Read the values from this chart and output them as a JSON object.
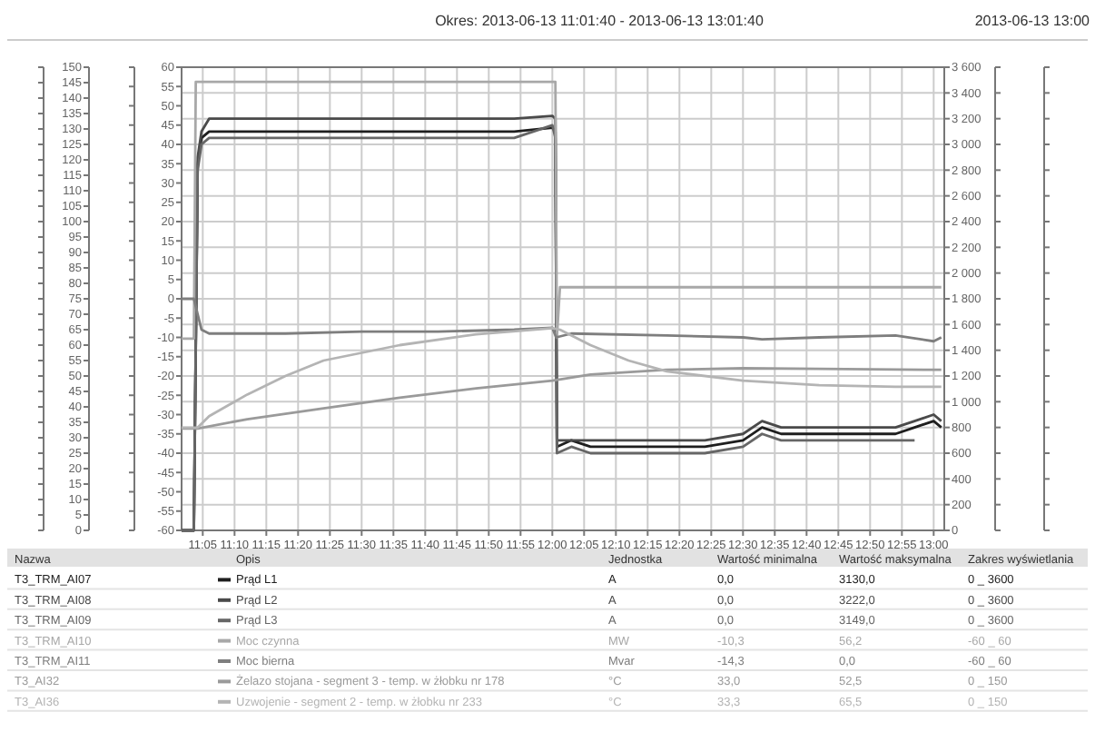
{
  "chart_data": {
    "type": "line",
    "title": "Okres: 2013-06-13 11:01:40 - 2013-06-13 13:01:40",
    "subtitle": "2013-06-13 13:00",
    "xlim": [
      11.0278,
      13.0278
    ],
    "xticks": [
      {
        "value": 11.0833,
        "label": "11:05"
      },
      {
        "value": 11.1667,
        "label": "11:10"
      },
      {
        "value": 11.25,
        "label": "11:15"
      },
      {
        "value": 11.3333,
        "label": "11:20"
      },
      {
        "value": 11.4167,
        "label": "11:25"
      },
      {
        "value": 11.5,
        "label": "11:30"
      },
      {
        "value": 11.5833,
        "label": "11:35"
      },
      {
        "value": 11.6667,
        "label": "11:40"
      },
      {
        "value": 11.75,
        "label": "11:45"
      },
      {
        "value": 11.8333,
        "label": "11:50"
      },
      {
        "value": 11.9167,
        "label": "11:55"
      },
      {
        "value": 12,
        "label": "12:00"
      },
      {
        "value": 12.0833,
        "label": "12:05"
      },
      {
        "value": 12.1667,
        "label": "12:10"
      },
      {
        "value": 12.25,
        "label": "12:15"
      },
      {
        "value": 12.3333,
        "label": "12:20"
      },
      {
        "value": 12.4167,
        "label": "12:25"
      },
      {
        "value": 12.5,
        "label": "12:30"
      },
      {
        "value": 12.5833,
        "label": "12:35"
      },
      {
        "value": 12.6667,
        "label": "12:40"
      },
      {
        "value": 12.75,
        "label": "12:45"
      },
      {
        "value": 12.8333,
        "label": "12:50"
      },
      {
        "value": 12.9167,
        "label": "12:55"
      },
      {
        "value": 13,
        "label": "13:00"
      }
    ],
    "ylim": [
      -60,
      60
    ],
    "yticks": [
      -60,
      -55,
      -50,
      -45,
      -40,
      -35,
      -30,
      -25,
      -20,
      -15,
      -10,
      -5,
      0,
      5,
      10,
      15,
      20,
      25,
      30,
      35,
      40,
      45,
      50,
      55,
      60
    ],
    "y2lim": [
      0,
      3600
    ],
    "y2ticks": [
      0,
      200,
      400,
      600,
      800,
      {
        "value": 1000,
        "label": "1 000"
      },
      {
        "value": 1200,
        "label": "1 200"
      },
      {
        "value": 1400,
        "label": "1 400"
      },
      {
        "value": 1600,
        "label": "1 600"
      },
      {
        "value": 1800,
        "label": "1 800"
      },
      {
        "value": 2000,
        "label": "2 000"
      },
      {
        "value": 2200,
        "label": "2 200"
      },
      {
        "value": 2400,
        "label": "2 400"
      },
      {
        "value": 2600,
        "label": "2 600"
      },
      {
        "value": 2800,
        "label": "2 800"
      },
      {
        "value": 3000,
        "label": "3 000"
      },
      {
        "value": 3200,
        "label": "3 200"
      },
      {
        "value": 3400,
        "label": "3 400"
      },
      {
        "value": 3600,
        "label": "3 600"
      }
    ],
    "y3lim": [
      0,
      150
    ],
    "y3ticks": [
      0,
      5,
      10,
      15,
      20,
      25,
      30,
      35,
      40,
      45,
      50,
      55,
      60,
      65,
      70,
      75,
      80,
      85,
      90,
      95,
      100,
      105,
      110,
      115,
      120,
      125,
      130,
      135,
      140,
      145,
      150
    ],
    "grid": true,
    "legend": "bottom",
    "line_style": "solid",
    "series": [
      {
        "name": "Prąd L1",
        "color": "#1e1e1e",
        "axis": "y2",
        "x": [
          11.0278,
          11.06,
          11.07,
          11.08,
          11.1,
          11.2,
          11.3,
          11.4,
          11.5,
          11.6,
          11.7,
          11.8,
          11.9,
          12.0,
          12.008,
          12.012,
          12.05,
          12.1,
          12.2,
          12.3,
          12.4,
          12.5,
          12.55,
          12.6,
          12.7,
          12.8,
          12.9,
          12.95,
          13.0,
          13.02
        ],
        "values": [
          0,
          0,
          2850,
          3050,
          3100,
          3100,
          3100,
          3100,
          3100,
          3100,
          3100,
          3100,
          3100,
          3130,
          3100,
          650,
          700,
          650,
          650,
          650,
          650,
          700,
          800,
          750,
          750,
          750,
          750,
          800,
          850,
          800
        ]
      },
      {
        "name": "Prąd L2",
        "color": "#4a4a4a",
        "axis": "y2",
        "x": [
          11.0278,
          11.06,
          11.07,
          11.08,
          11.1,
          11.2,
          11.3,
          11.4,
          11.5,
          11.6,
          11.7,
          11.8,
          11.9,
          12.0,
          12.008,
          12.012,
          12.05,
          12.1,
          12.2,
          12.3,
          12.4,
          12.5,
          12.55,
          12.6,
          12.7,
          12.8,
          12.9,
          12.95,
          13.0,
          13.02
        ],
        "values": [
          0,
          0,
          2900,
          3100,
          3200,
          3200,
          3200,
          3200,
          3200,
          3200,
          3200,
          3200,
          3200,
          3222,
          3200,
          700,
          700,
          700,
          700,
          700,
          700,
          750,
          850,
          800,
          800,
          800,
          800,
          850,
          900,
          850
        ]
      },
      {
        "name": "Prąd L3",
        "color": "#666666",
        "axis": "y2",
        "x": [
          11.0278,
          11.06,
          11.07,
          11.08,
          11.1,
          11.2,
          11.3,
          11.4,
          11.5,
          11.6,
          11.7,
          11.8,
          11.9,
          12.0,
          12.008,
          12.012,
          12.05,
          12.1,
          12.2,
          12.3,
          12.4,
          12.5,
          12.55,
          12.6,
          12.7,
          12.8,
          12.9,
          12.95
        ],
        "values": [
          0,
          0,
          2800,
          3000,
          3050,
          3050,
          3050,
          3050,
          3050,
          3050,
          3050,
          3050,
          3050,
          3149,
          3050,
          600,
          650,
          600,
          600,
          600,
          600,
          650,
          750,
          700,
          700,
          700,
          700,
          700
        ]
      },
      {
        "name": "Moc czynna",
        "color": "#a8a8a8",
        "x": [
          11.0278,
          11.06,
          11.065,
          12.008,
          12.012,
          12.02,
          13.02
        ],
        "values": [
          -10.3,
          -10.3,
          56.2,
          56.2,
          -10,
          3,
          3
        ]
      },
      {
        "name": "Moc bierna",
        "color": "#7e7e7e",
        "x": [
          11.0278,
          11.06,
          11.065,
          11.08,
          11.1,
          11.3,
          11.5,
          11.7,
          11.9,
          12.0,
          12.01,
          12.05,
          12.3,
          12.5,
          12.55,
          12.7,
          12.9,
          13.0,
          13.02
        ],
        "values": [
          0,
          0,
          -2,
          -8,
          -9,
          -9,
          -8.5,
          -8.5,
          -8,
          -7.5,
          -10,
          -9,
          -9.5,
          -10,
          -10.5,
          -10,
          -9.5,
          -11,
          -10
        ]
      },
      {
        "name": "Żelazo stojana - segment 3 - temp. w żłobku nr 178",
        "color": "#9a9a9a",
        "axis": "y3",
        "x": [
          11.0278,
          11.07,
          11.2,
          11.4,
          11.6,
          11.8,
          12.0,
          12.1,
          12.3,
          12.5,
          12.7,
          13.02
        ],
        "values": [
          33,
          33,
          36,
          39.5,
          43,
          46,
          48.5,
          50.5,
          52,
          52.5,
          52.3,
          52
        ]
      },
      {
        "name": "Uzwojenie - segment 2 - temp. w żłobku nr 233",
        "color": "#b4b4b4",
        "axis": "y3",
        "x": [
          11.0278,
          11.07,
          11.1,
          11.2,
          11.3,
          11.4,
          11.6,
          11.8,
          12.0,
          12.02,
          12.1,
          12.2,
          12.3,
          12.5,
          12.7,
          12.9,
          13.02
        ],
        "values": [
          33.3,
          33.3,
          37,
          44,
          50,
          55,
          60,
          63.5,
          65.5,
          65,
          60,
          55,
          51.5,
          48.5,
          47,
          46.5,
          46.5
        ]
      }
    ],
    "annotations": [
      "Nazwa",
      "Opis",
      "Jednostka",
      "Wartość minimalna",
      "Wartość maksymalna",
      "Zakres wyświetlania",
      "T3_TRM_AI07",
      "A",
      "0,0",
      "3130,0",
      "0 _ 3600",
      "T3_TRM_AI08",
      "A",
      "0,0",
      "3222,0",
      "0 _ 3600",
      "T3_TRM_AI09",
      "A",
      "0,0",
      "3149,0",
      "0 _ 3600",
      "T3_TRM_AI10",
      "MW",
      "-10,3",
      "56,2",
      "-60 _ 60",
      "T3_TRM_AI11",
      "Mvar",
      "-14,3",
      "0,0",
      "-60 _ 60",
      "T3_AI32",
      "°C",
      "33,0",
      "52,5",
      "0 _ 150",
      "T3_AI36",
      "°C",
      "33,3",
      "65,5",
      "0 _ 150"
    ]
  }
}
